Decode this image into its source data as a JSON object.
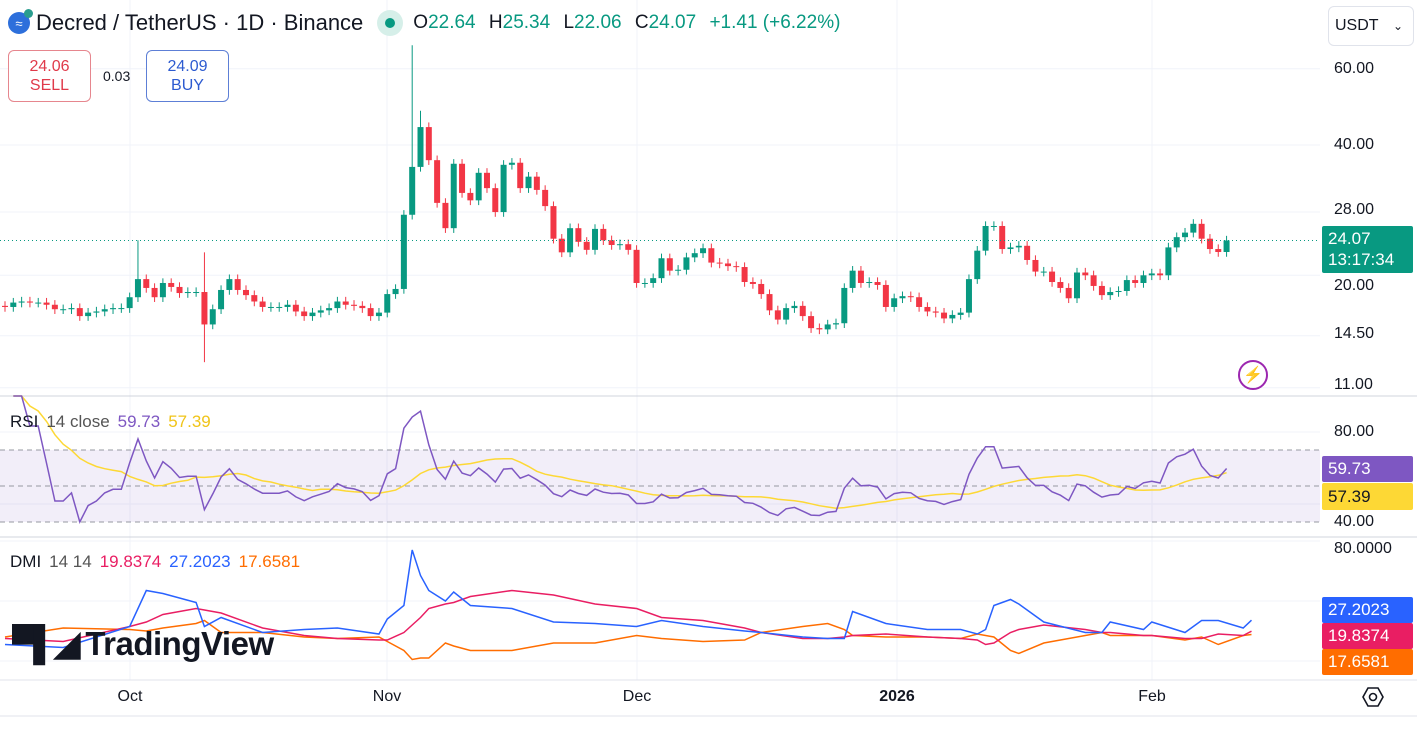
{
  "header": {
    "symbol": "Decred / TetherUS · 1D · Binance",
    "coin_icon": "decred-logo-icon",
    "ohlc": {
      "o_label": "O",
      "o": "22.64",
      "h_label": "H",
      "h": "25.34",
      "l_label": "L",
      "l": "22.06",
      "c_label": "C",
      "c": "24.07",
      "change": "+1.41 (+6.22%)"
    },
    "sell_price": "24.06",
    "sell_label": "SELL",
    "spread": "0.03",
    "buy_price": "24.09",
    "buy_label": "BUY",
    "currency": "USDT"
  },
  "colors": {
    "up": "#089981",
    "down": "#f23645",
    "rsi": "#7e57c2",
    "rsi_ma": "#fdd835",
    "adx": "#e91e63",
    "plus_di": "#2962ff",
    "minus_di": "#ff6d00"
  },
  "price_axis": {
    "ticks": [
      "60.00",
      "40.00",
      "28.00",
      "20.00",
      "14.50",
      "11.00"
    ],
    "last_price": "24.07",
    "countdown": "13:17:34"
  },
  "rsi_panel": {
    "title": "RSI",
    "params": "14 close",
    "value": "59.73",
    "ma_value": "57.39",
    "ticks": [
      "80.00",
      "40.00"
    ]
  },
  "dmi_panel": {
    "title": "DMI",
    "params": "14 14",
    "adx": "19.8374",
    "plus_di": "27.2023",
    "minus_di": "17.6581",
    "ticks": [
      "80.0000"
    ]
  },
  "time_axis": {
    "labels": [
      "Oct",
      "Nov",
      "Dec",
      "2026",
      "Feb"
    ]
  },
  "watermark": "TradingView",
  "chart_data": {
    "type": "candlestick",
    "scale": "log",
    "start_date": "2025-09-16",
    "interval": "1D",
    "ylim": [
      11,
      66
    ],
    "grid": true,
    "closes": [
      16.9,
      17.3,
      17.4,
      17.3,
      17.3,
      17.1,
      16.7,
      16.7,
      16.8,
      16.1,
      16.4,
      16.5,
      16.7,
      16.8,
      16.8,
      17.8,
      19.6,
      18.7,
      17.8,
      19.2,
      18.8,
      18.2,
      18.3,
      18.3,
      15.4,
      16.7,
      18.5,
      19.6,
      18.5,
      18.0,
      17.4,
      16.9,
      16.9,
      16.9,
      17.1,
      16.5,
      16.1,
      16.4,
      16.6,
      16.8,
      17.4,
      17.1,
      17.0,
      16.8,
      16.1,
      16.4,
      18.1,
      18.6,
      27.6,
      35.6,
      44.0,
      36.9,
      29.4,
      25.7,
      36.2,
      31.0,
      29.8,
      34.5,
      31.8,
      28.0,
      36.0,
      36.4,
      31.8,
      33.8,
      31.5,
      28.9,
      24.3,
      22.6,
      25.7,
      23.9,
      22.9,
      25.6,
      24.1,
      23.5,
      23.6,
      22.9,
      19.2,
      19.2,
      19.7,
      21.9,
      20.5,
      20.6,
      22.0,
      22.5,
      23.1,
      21.4,
      21.3,
      21.0,
      20.9,
      19.3,
      19.1,
      18.1,
      16.6,
      15.8,
      16.8,
      17.0,
      16.1,
      15.1,
      15.0,
      15.4,
      15.5,
      18.7,
      20.5,
      19.2,
      19.3,
      19.0,
      16.9,
      17.7,
      17.9,
      17.8,
      16.9,
      16.5,
      16.4,
      15.9,
      16.2,
      16.4,
      19.6,
      22.8,
      26.0,
      26.0,
      23.0,
      23.2,
      23.4,
      21.7,
      20.4,
      20.4,
      19.3,
      18.7,
      17.7,
      20.3,
      20.0,
      18.9,
      18.0,
      18.3,
      18.4,
      19.5,
      19.2,
      20.0,
      20.2,
      20.0,
      23.2,
      24.5,
      25.1,
      26.3,
      24.3,
      23.0,
      22.64,
      24.07
    ],
    "first_open": 17.0,
    "notable_wicks": [
      {
        "date": "2025-10-02",
        "high": 24.1
      },
      {
        "date": "2025-10-10",
        "high": 22.6,
        "low": 12.6
      },
      {
        "date": "2025-11-04",
        "high": 68.0
      },
      {
        "date": "2025-11-05",
        "high": 48.0
      },
      {
        "date": "2026-02-13",
        "high": 25.34,
        "low": 22.06
      }
    ],
    "last": {
      "open": 22.64,
      "high": 25.34,
      "low": 22.06,
      "close": 24.07
    },
    "rsi": {
      "length": 14,
      "ma_length": 14,
      "bands": [
        70,
        50,
        30
      ],
      "last": 59.73,
      "ma_last": 57.39
    },
    "dmi": {
      "ylim": [
        0,
        80
      ],
      "dates": [
        "2025-09-16",
        "2025-09-23",
        "2025-10-01",
        "2025-10-03",
        "2025-10-05",
        "2025-10-09",
        "2025-10-10",
        "2025-10-12",
        "2025-10-17",
        "2025-10-22",
        "2025-10-26",
        "2025-10-31",
        "2025-11-01",
        "2025-11-03",
        "2025-11-04",
        "2025-11-05",
        "2025-11-06",
        "2025-11-08",
        "2025-11-09",
        "2025-11-11",
        "2025-11-16",
        "2025-11-21",
        "2025-11-26",
        "2025-12-01",
        "2025-12-04",
        "2025-12-09",
        "2025-12-14",
        "2025-12-16",
        "2025-12-21",
        "2025-12-24",
        "2025-12-26",
        "2025-12-27",
        "2025-12-31",
        "2026-01-05",
        "2026-01-09",
        "2026-01-11",
        "2026-01-12",
        "2026-01-13",
        "2026-01-15",
        "2026-01-16",
        "2026-01-19",
        "2026-01-24",
        "2026-01-26",
        "2026-01-27",
        "2026-01-31",
        "2026-02-01",
        "2026-02-05",
        "2026-02-07",
        "2026-02-09",
        "2026-02-12",
        "2026-02-13"
      ],
      "series": [
        {
          "name": "ADX",
          "values": [
            15,
            13,
            23,
            26,
            31,
            35,
            34,
            32,
            22,
            17,
            15,
            14,
            14,
            19,
            24,
            29,
            35,
            38,
            39,
            43,
            47,
            44,
            38,
            35,
            29,
            27,
            22,
            19,
            15,
            15,
            16,
            17,
            18,
            16,
            15,
            14,
            11,
            12,
            19,
            21,
            24,
            21,
            19,
            19,
            17,
            17,
            15,
            15,
            18,
            17,
            19.84
          ]
        },
        {
          "name": "+DI",
          "values": [
            11,
            9,
            23,
            47,
            45,
            39,
            23,
            29,
            19,
            21,
            22,
            18,
            28,
            37,
            74,
            57,
            47,
            40,
            46,
            37,
            35,
            26,
            25,
            23,
            27,
            23,
            20,
            19,
            16,
            15,
            15,
            33,
            25,
            21,
            21,
            18,
            21,
            37,
            41,
            38,
            26,
            19,
            19,
            26,
            21,
            26,
            19,
            27,
            27,
            22,
            27.2
          ]
        },
        {
          "name": "-DI",
          "values": [
            16,
            22,
            21,
            20,
            22,
            25,
            27,
            19,
            19,
            16,
            15,
            16,
            13,
            7,
            1,
            2,
            2,
            12,
            10,
            7,
            7,
            12,
            12,
            17,
            15,
            13,
            14,
            19,
            23,
            25,
            21,
            17,
            16,
            16,
            15,
            18,
            17,
            16,
            7,
            5,
            12,
            17,
            19,
            17,
            17,
            17,
            14,
            16,
            11,
            17,
            17.66
          ]
        }
      ]
    }
  }
}
